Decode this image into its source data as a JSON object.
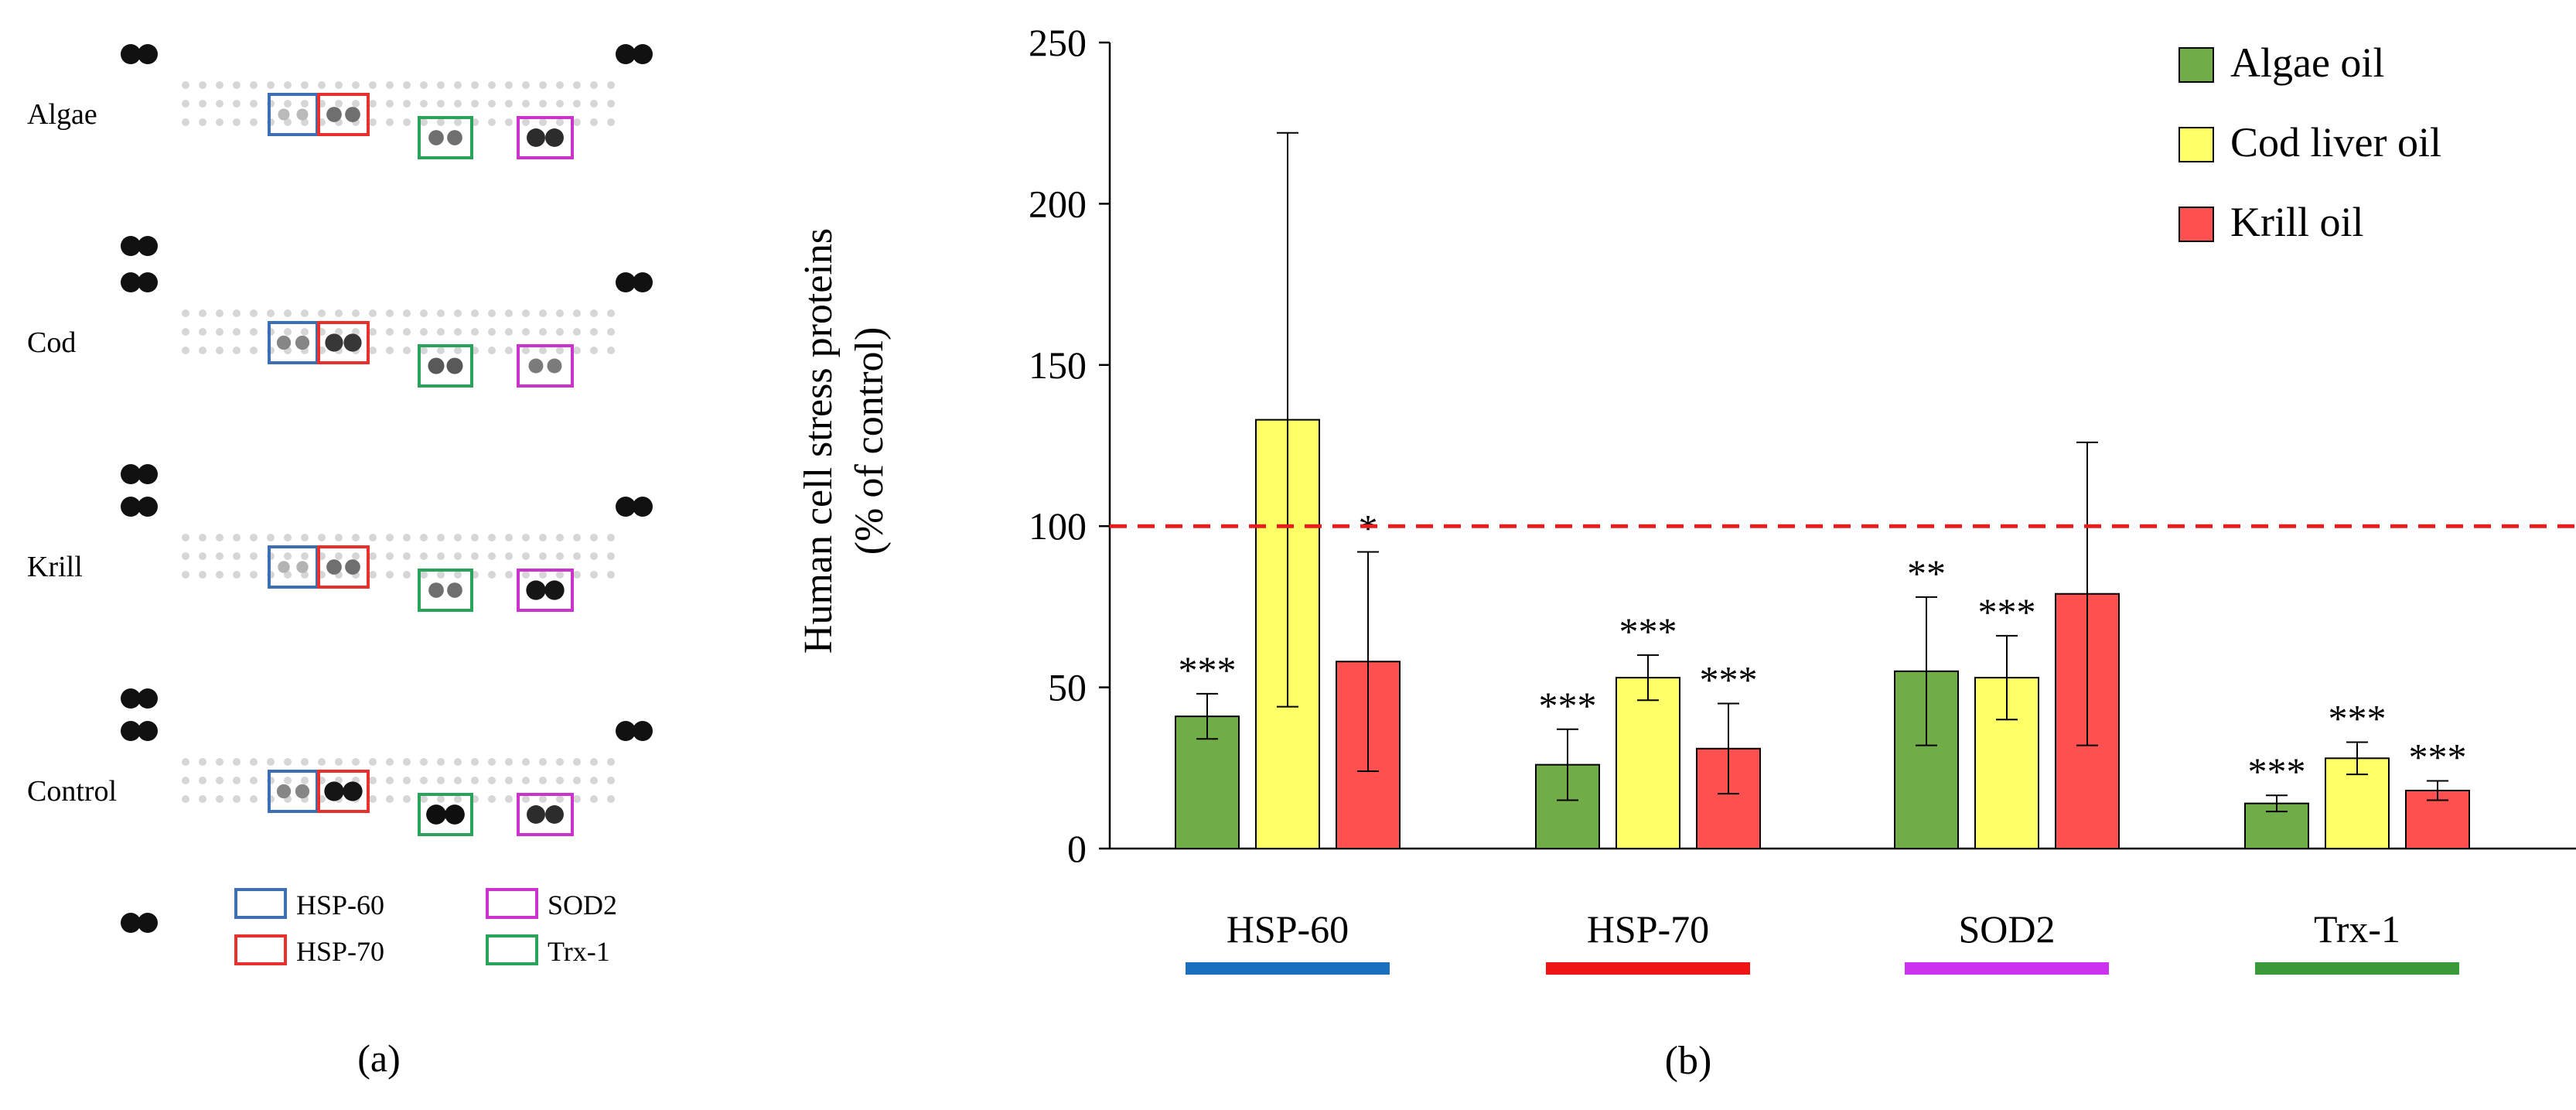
{
  "panel_a": {
    "rows": [
      {
        "label": "Algae",
        "spots": {
          "hsp60": 0.22,
          "hsp70": 0.55,
          "trx1": 0.55,
          "sod2": 0.85
        }
      },
      {
        "label": "Cod",
        "spots": {
          "hsp60": 0.45,
          "hsp70": 0.8,
          "trx1": 0.65,
          "sod2": 0.5
        }
      },
      {
        "label": "Krill",
        "spots": {
          "hsp60": 0.25,
          "hsp70": 0.55,
          "trx1": 0.55,
          "sod2": 0.95
        }
      },
      {
        "label": "Control",
        "spots": {
          "hsp60": 0.45,
          "hsp70": 0.95,
          "trx1": 0.98,
          "sod2": 0.85
        }
      }
    ],
    "legend": [
      {
        "key": "hsp60",
        "label": "HSP-60",
        "color": "#3d6fb4"
      },
      {
        "key": "hsp70",
        "label": "HSP-70",
        "color": "#e8312e"
      },
      {
        "key": "sod2",
        "label": "SOD2",
        "color": "#cc33cc"
      },
      {
        "key": "trx1",
        "label": "Trx-1",
        "color": "#2aa35a"
      }
    ],
    "caption": "(a)"
  },
  "chart_data": {
    "type": "bar",
    "title": "",
    "ylabel_line1": "Human cell stress proteins",
    "ylabel_line2": "(% of control)",
    "ylim": [
      0,
      250
    ],
    "yticks": [
      0,
      50,
      100,
      150,
      200,
      250
    ],
    "reference_line": 100,
    "reference_color": "#e81c1c",
    "legend_position": "top-right",
    "categories": [
      {
        "label": "HSP-60",
        "underline_color": "#1a6fbf"
      },
      {
        "label": "HSP-70",
        "underline_color": "#f01515"
      },
      {
        "label": "SOD2",
        "underline_color": "#cc33ee"
      },
      {
        "label": "Trx-1",
        "underline_color": "#3a9a3a"
      }
    ],
    "series": [
      {
        "name": "Algae oil",
        "color": "#70ad47",
        "values": [
          41,
          26,
          55,
          14
        ],
        "errors": [
          7,
          11,
          23,
          2.5
        ],
        "sig": [
          "***",
          "***",
          "**",
          "***"
        ]
      },
      {
        "name": "Cod liver oil",
        "color": "#ffff66",
        "values": [
          133,
          53,
          53,
          28
        ],
        "errors": [
          89,
          7,
          13,
          5
        ],
        "sig": [
          "",
          "***",
          "***",
          "***"
        ]
      },
      {
        "name": "Krill oil",
        "color": "#ff5050",
        "values": [
          58,
          31,
          79,
          18
        ],
        "errors": [
          34,
          14,
          47,
          3
        ],
        "sig": [
          "*",
          "***",
          "",
          "***"
        ]
      }
    ],
    "caption": "(b)"
  }
}
